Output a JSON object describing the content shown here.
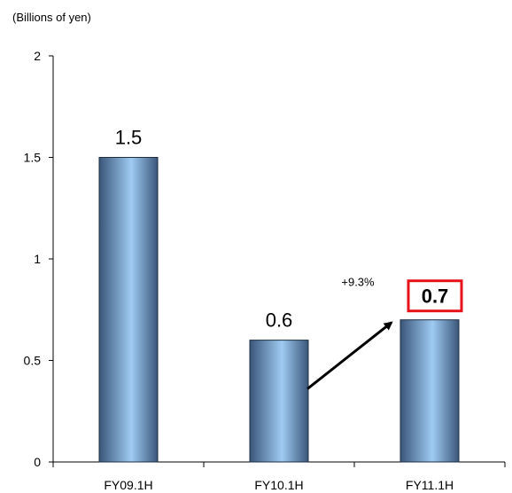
{
  "chart_data": {
    "type": "bar",
    "unit_label": "(Billions of yen)",
    "categories": [
      "FY09.1H",
      "FY10.1H",
      "FY11.1H"
    ],
    "values": [
      1.5,
      0.6,
      0.7
    ],
    "value_labels": [
      "1.5",
      "0.6",
      "0.7"
    ],
    "highlight_index": 2,
    "highlight_color": "#e8121b",
    "bar_colors": {
      "edge": "#3a5679",
      "center": "#9fcbf3"
    },
    "ylim": [
      0,
      2
    ],
    "yticks": [
      "0",
      "0.5",
      "1",
      "1.5",
      "2"
    ],
    "grid": false,
    "annotation": {
      "text": "+9.3%",
      "from_index": 1,
      "to_index": 2
    }
  }
}
